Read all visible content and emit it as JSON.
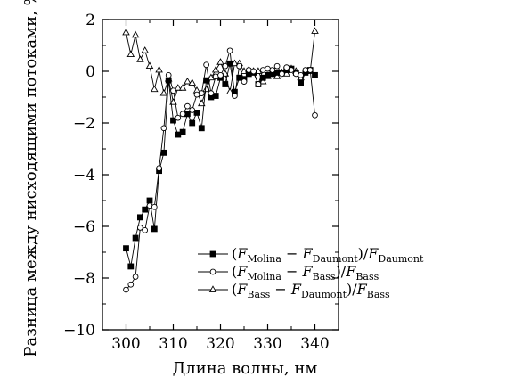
{
  "chart_data": {
    "type": "line",
    "xlabel": "Длина волны, нм",
    "ylabel": "Разница между нисходящими потоками, %",
    "xlim": [
      295,
      345
    ],
    "ylim": [
      -10,
      2
    ],
    "x_ticks": [
      300,
      310,
      320,
      330,
      340
    ],
    "y_ticks": [
      2,
      0,
      -2,
      -4,
      -6,
      -8,
      -10
    ],
    "x_tick_labels": [
      "300",
      "310",
      "320",
      "330",
      "340"
    ],
    "y_tick_labels": [
      "2",
      "0",
      "−2",
      "−4",
      "−6",
      "−8",
      "−10"
    ],
    "legend_position": "lower-right",
    "x": [
      300,
      301,
      302,
      303,
      304,
      305,
      306,
      307,
      308,
      309,
      310,
      311,
      312,
      313,
      314,
      315,
      316,
      317,
      318,
      319,
      320,
      321,
      322,
      323,
      324,
      325,
      326,
      327,
      328,
      329,
      330,
      331,
      332,
      333,
      334,
      335,
      336,
      337,
      338,
      339,
      340
    ],
    "series": [
      {
        "marker": "filled-square",
        "legend_parts": {
          "a": "Molina",
          "b": "Daumont",
          "c": "Daumont"
        },
        "values": [
          -6.85,
          -7.55,
          -6.45,
          -5.65,
          -5.35,
          -5.0,
          -6.1,
          -3.85,
          -3.15,
          -0.35,
          -1.9,
          -2.45,
          -2.35,
          -1.65,
          -2.0,
          -1.6,
          -2.2,
          -0.35,
          -1.0,
          -0.95,
          -0.25,
          -0.5,
          0.3,
          -0.8,
          -0.25,
          -0.3,
          -0.1,
          -0.05,
          -0.5,
          -0.25,
          -0.15,
          -0.1,
          -0.05,
          -0.05,
          0.05,
          0.1,
          -0.05,
          -0.45,
          -0.05,
          0.05,
          -0.15
        ]
      },
      {
        "marker": "open-circle",
        "legend_parts": {
          "a": "Molina",
          "b": "Bass",
          "c": "Bass"
        },
        "values": [
          -8.45,
          -8.25,
          -7.95,
          -6.05,
          -6.15,
          -5.2,
          -5.25,
          -3.75,
          -2.2,
          -0.15,
          -0.75,
          -1.8,
          -1.65,
          -1.35,
          -1.5,
          -0.9,
          -0.85,
          0.25,
          -0.85,
          -0.2,
          -0.15,
          0.2,
          0.8,
          -0.95,
          0.2,
          -0.4,
          0.05,
          0.0,
          -0.5,
          0.05,
          0.1,
          0.05,
          0.2,
          -0.1,
          0.15,
          0.05,
          -0.1,
          -0.15,
          0.05,
          0.05,
          -1.7
        ]
      },
      {
        "marker": "open-triangle",
        "legend_parts": {
          "a": "Bass",
          "b": "Daumont",
          "c": "Bass"
        },
        "values": [
          1.5,
          0.65,
          1.4,
          0.45,
          0.8,
          0.2,
          -0.7,
          0.05,
          -0.85,
          -0.3,
          -1.2,
          -0.65,
          -0.65,
          -0.4,
          -0.45,
          -0.75,
          -1.25,
          -0.7,
          -0.25,
          0.05,
          0.35,
          -0.1,
          -0.8,
          0.3,
          0.3,
          0.0,
          0.05,
          0.0,
          0.0,
          -0.4,
          -0.2,
          -0.1,
          -0.2,
          -0.05,
          -0.1,
          0.1,
          0.0,
          -0.25,
          0.0,
          0.0,
          1.55
        ]
      }
    ]
  }
}
